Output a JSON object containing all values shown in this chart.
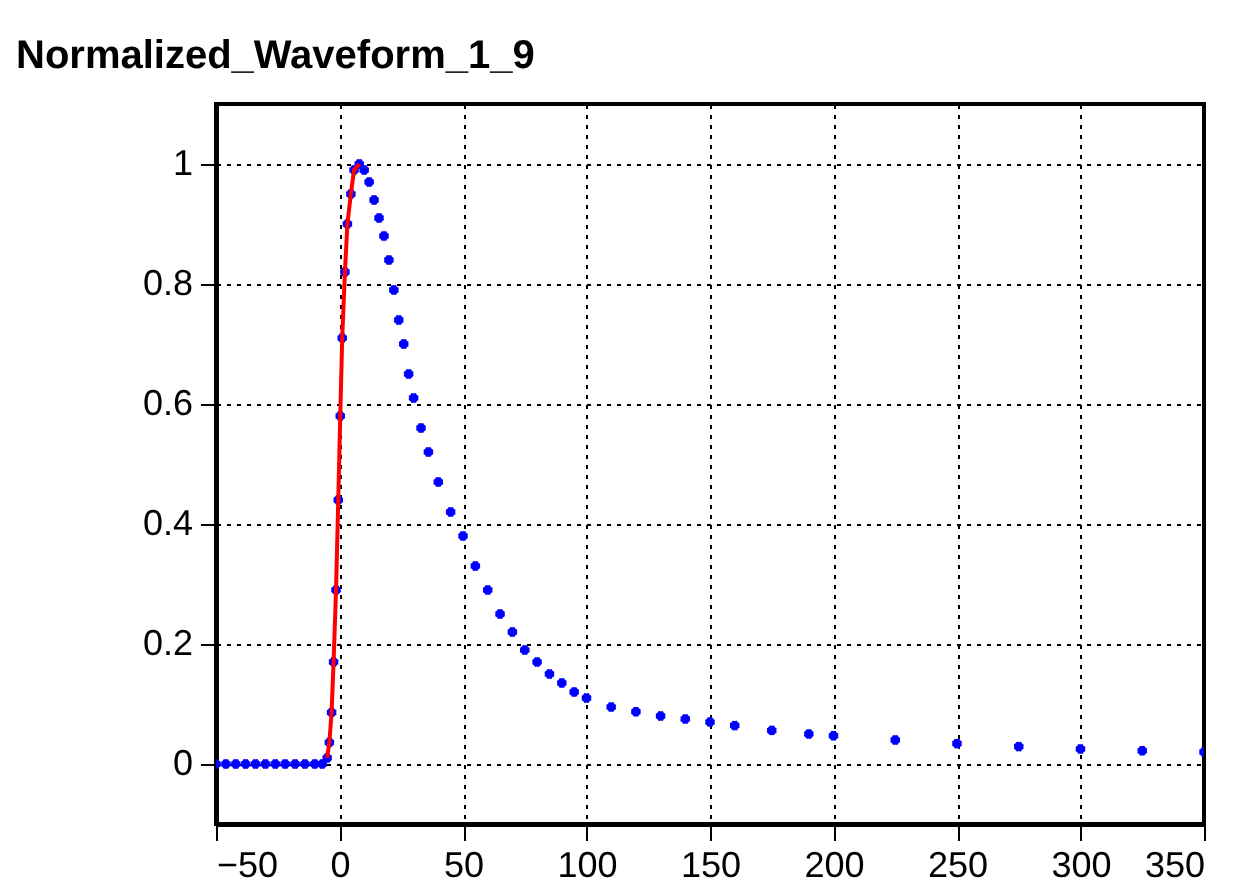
{
  "chart_data": {
    "type": "scatter",
    "title": "Normalized_Waveform_1_9",
    "xlim": [
      -50,
      350
    ],
    "ylim": [
      -0.1,
      1.1
    ],
    "xticks": [
      -50,
      0,
      50,
      100,
      150,
      200,
      250,
      300,
      350
    ],
    "yticks": [
      0,
      0.2,
      0.4,
      0.6,
      0.8,
      1
    ],
    "grid": true,
    "series": [
      {
        "color": "#0000ff",
        "marker": "cross",
        "x": [
          -50,
          -46,
          -42,
          -38,
          -34,
          -30,
          -26,
          -22,
          -18,
          -14,
          -10,
          -7,
          -5,
          -4.1,
          -3.2,
          -2.4,
          -1.4,
          -0.5,
          0.3,
          1.1,
          2.2,
          3.2,
          4.6,
          5.9,
          8,
          10,
          12,
          14,
          16,
          18,
          20,
          22,
          24,
          26,
          28,
          30,
          33,
          36,
          40,
          45,
          50,
          55,
          60,
          65,
          70,
          75,
          80,
          85,
          90,
          95,
          100,
          110,
          120,
          130,
          140,
          150,
          160,
          175,
          190,
          200,
          225,
          250,
          275,
          300,
          325,
          350
        ],
        "values": [
          0,
          0,
          0,
          0,
          0,
          0,
          0,
          0,
          0,
          0,
          0,
          0,
          0.01,
          0.036,
          0.086,
          0.17,
          0.29,
          0.44,
          0.58,
          0.71,
          0.82,
          0.9,
          0.95,
          0.99,
          1,
          0.99,
          0.97,
          0.94,
          0.91,
          0.88,
          0.84,
          0.79,
          0.74,
          0.7,
          0.65,
          0.61,
          0.56,
          0.52,
          0.47,
          0.42,
          0.38,
          0.33,
          0.29,
          0.25,
          0.22,
          0.19,
          0.17,
          0.15,
          0.135,
          0.12,
          0.11,
          0.095,
          0.087,
          0.08,
          0.075,
          0.07,
          0.064,
          0.056,
          0.05,
          0.047,
          0.04,
          0.034,
          0.029,
          0.025,
          0.022,
          0.02
        ]
      },
      {
        "type": "line",
        "color": "#ff0000",
        "x": [
          -5,
          -4.1,
          -3.2,
          -2.4,
          -1.4,
          -0.5,
          0.3,
          1.1,
          2.2,
          3.2,
          4.6,
          5.9,
          8
        ],
        "values": [
          0.01,
          0.036,
          0.086,
          0.17,
          0.29,
          0.44,
          0.58,
          0.71,
          0.82,
          0.9,
          0.95,
          0.99,
          1
        ]
      }
    ]
  }
}
